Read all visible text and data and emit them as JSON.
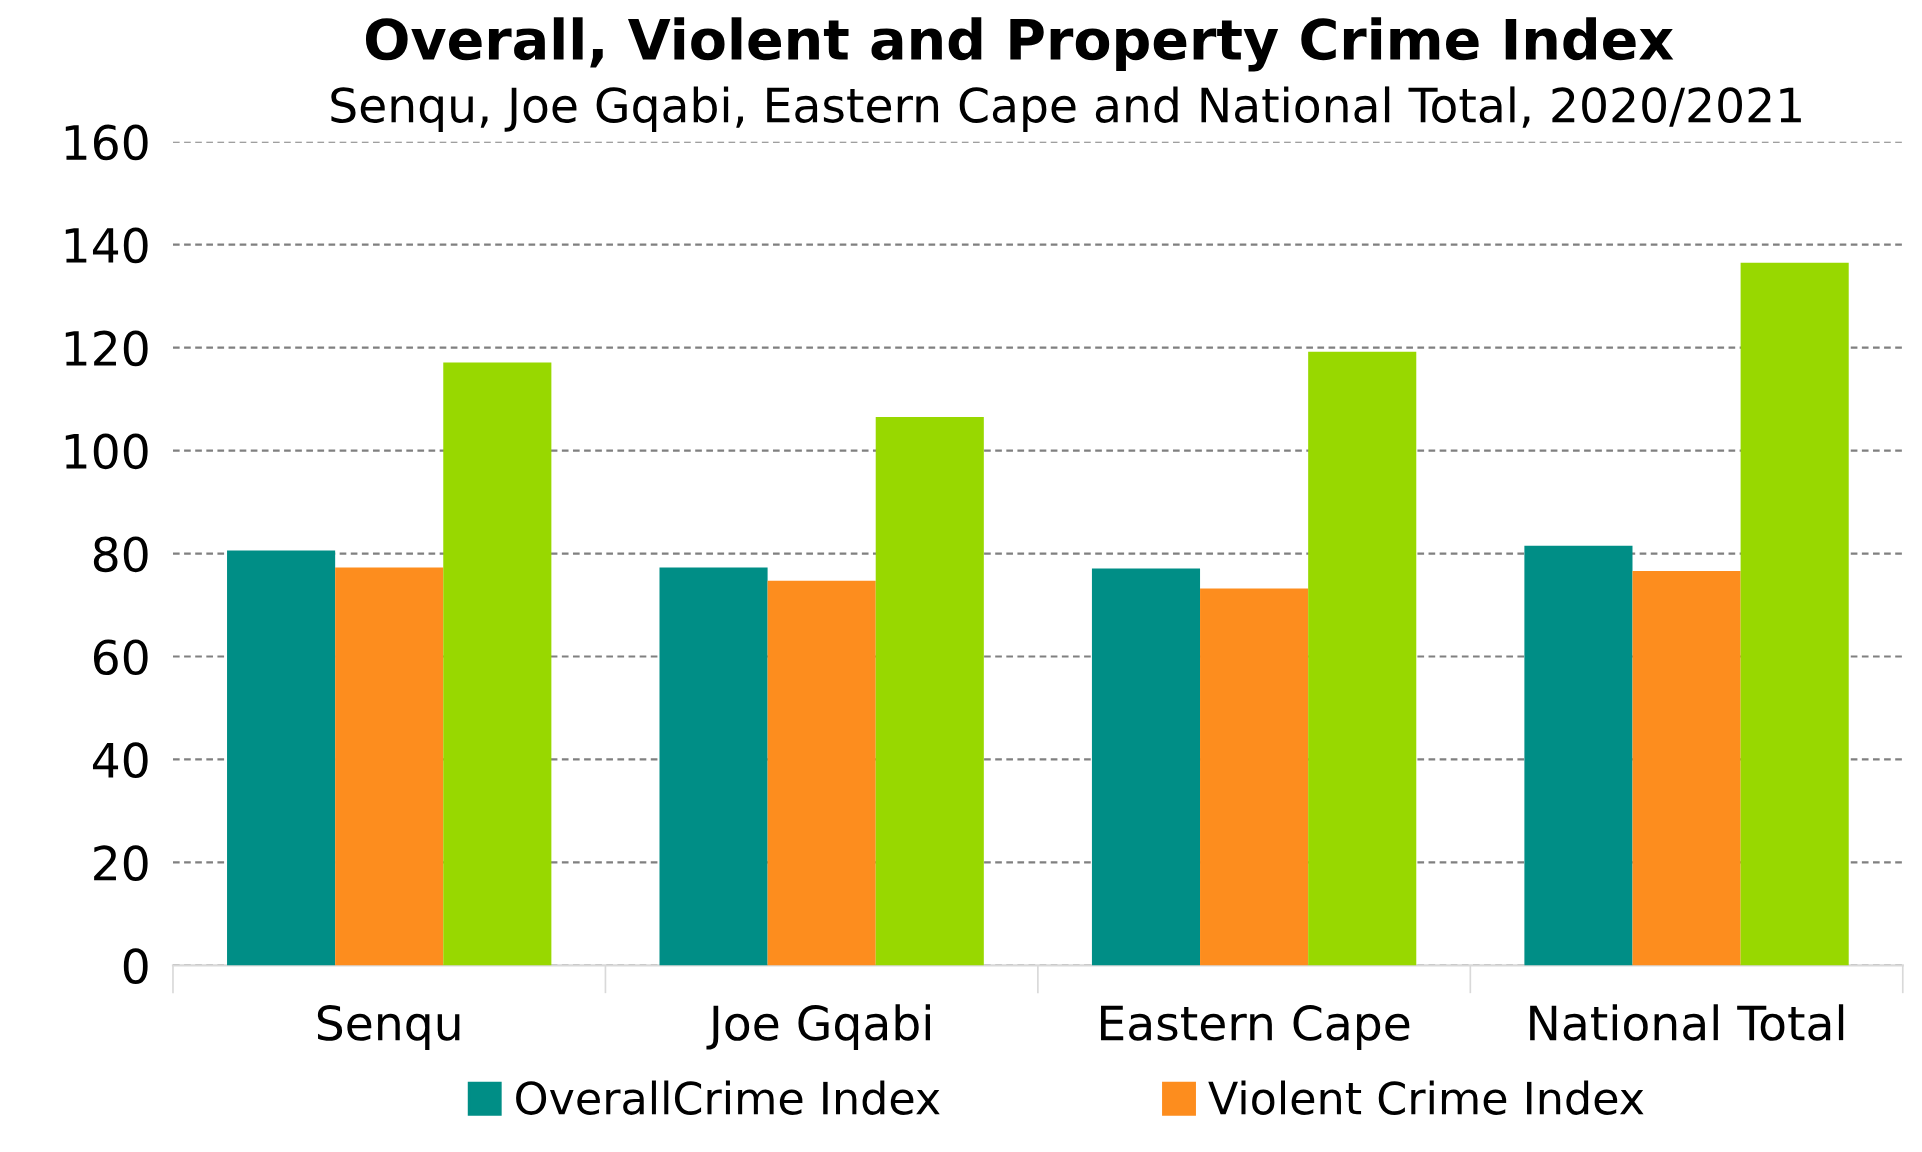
{
  "chart_data": {
    "type": "bar",
    "title": "Overall, Violent and Property Crime Index",
    "subtitle": "Senqu, Joe Gqabi, Eastern Cape and National Total, 2020/2021",
    "categories": [
      "Senqu",
      "Joe Gqabi",
      "Eastern Cape",
      "National Total"
    ],
    "series": [
      {
        "name": "OverallCrime Index",
        "color": "#008e86",
        "values": [
          80.6,
          77.3,
          77.1,
          81.5
        ]
      },
      {
        "name": "Violent Crime Index",
        "color": "#fd8d1e",
        "values": [
          77.3,
          74.7,
          73.2,
          76.6
        ]
      },
      {
        "color": "#98d800",
        "values": [
          117.1,
          106.5,
          119.2,
          136.5
        ]
      }
    ],
    "ylim": [
      0,
      160
    ],
    "yticks": [
      0,
      20,
      40,
      60,
      80,
      100,
      120,
      140,
      160
    ],
    "grid": "y",
    "legend": "bottom"
  }
}
